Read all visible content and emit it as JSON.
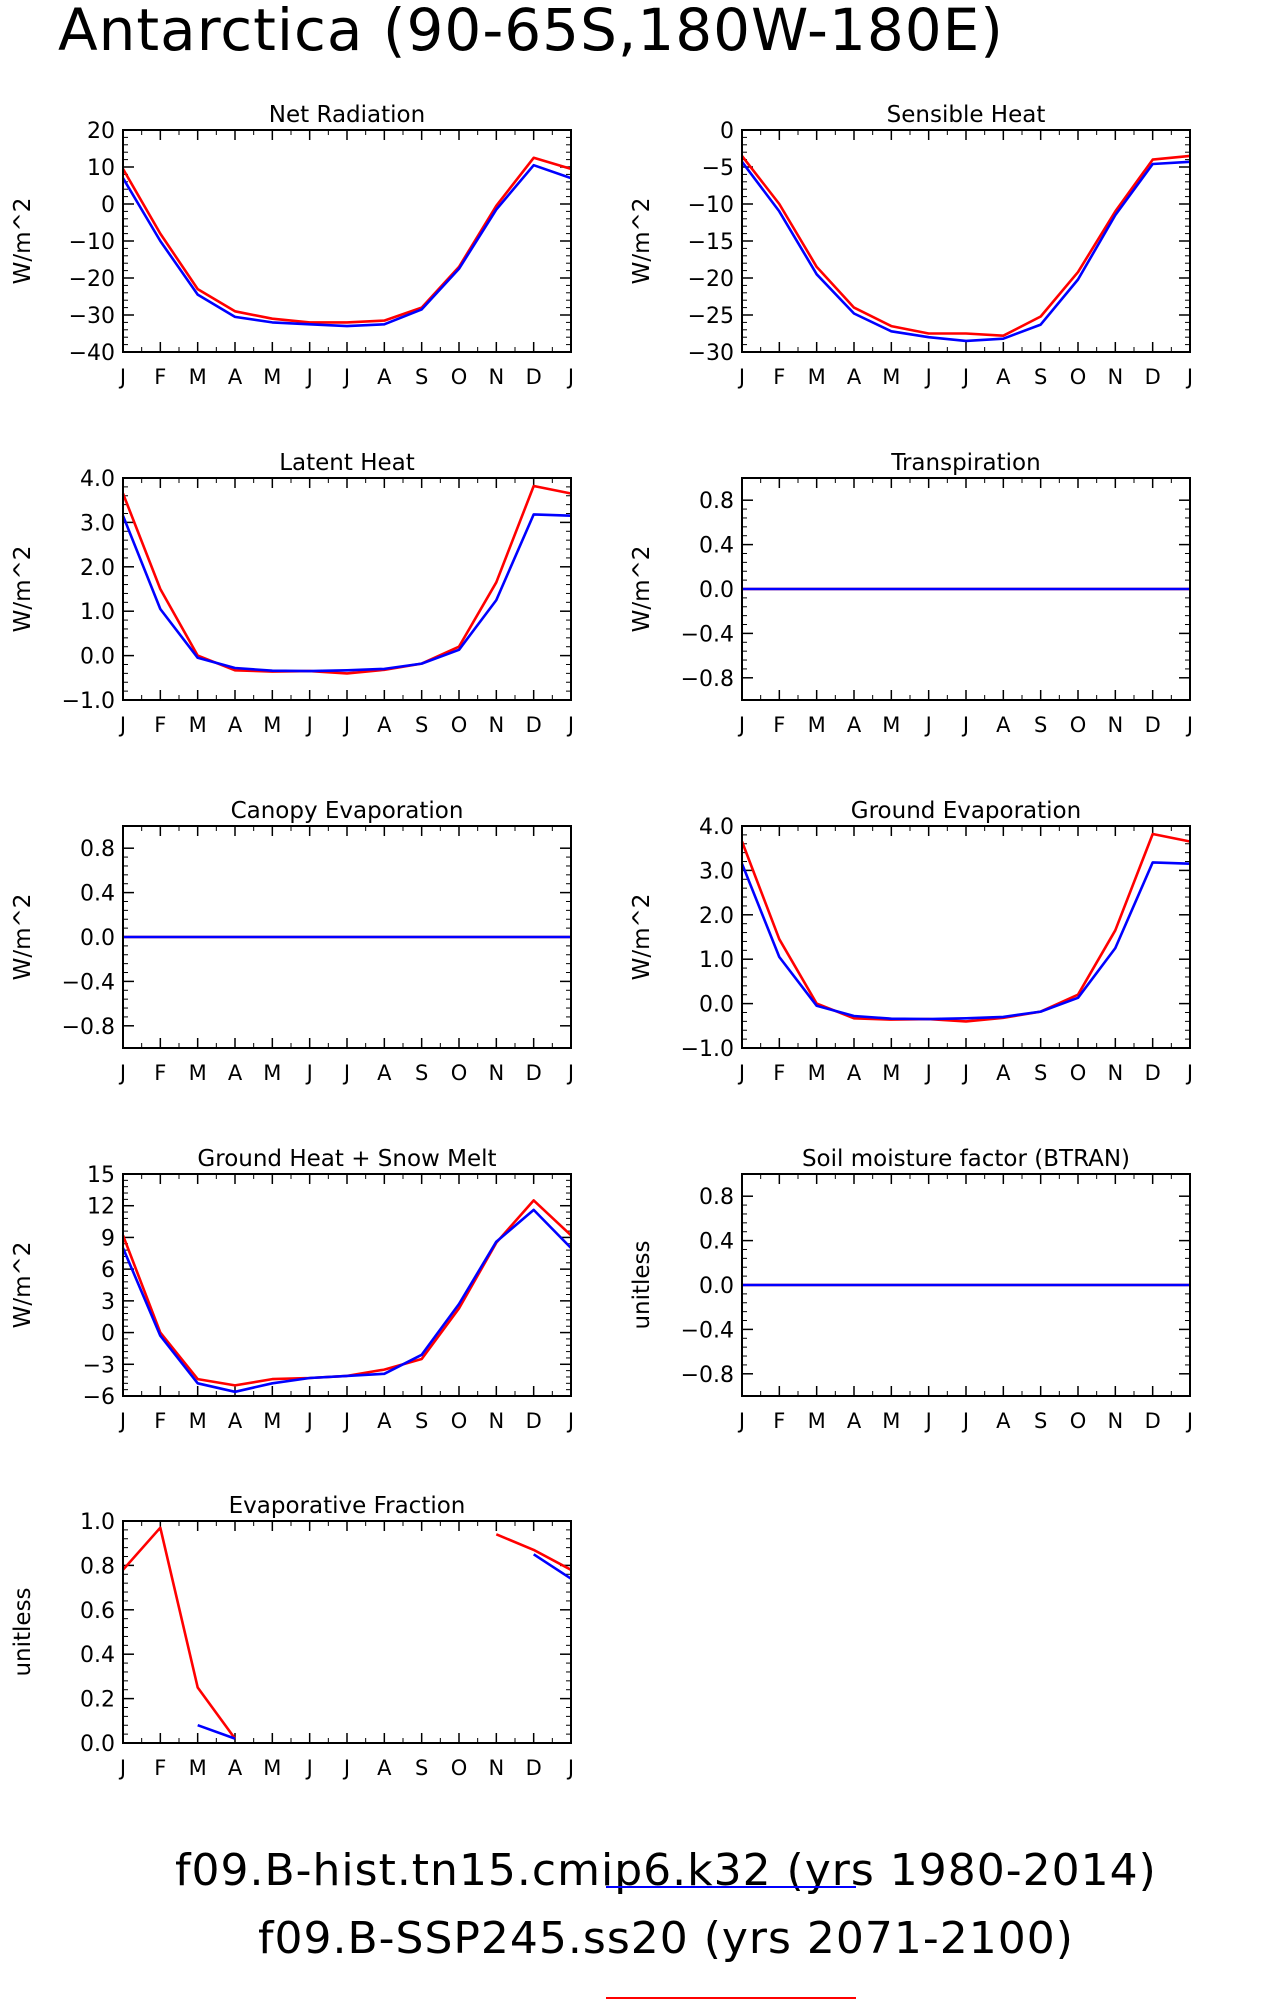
{
  "title": "Antarctica (90-65S,180W-180E)",
  "colors": {
    "series1": "#0000ff",
    "series2": "#ff0000",
    "axis": "#000000"
  },
  "legend": [
    {
      "label": "f09.B-hist.tn15.cmip6.k32 (yrs 1980-2014)",
      "color": "#0000ff"
    },
    {
      "label": "f09.B-SSP245.ss20 (yrs 2071-2100)",
      "color": "#ff0000"
    }
  ],
  "chart_data": [
    {
      "type": "line",
      "title": "Net Radiation",
      "ylabel": "W/m^2",
      "categories": [
        "J",
        "F",
        "M",
        "A",
        "M",
        "J",
        "J",
        "A",
        "S",
        "O",
        "N",
        "D",
        "J"
      ],
      "ylim": [
        -40,
        20
      ],
      "yticks": [
        20,
        10,
        0,
        -10,
        -20,
        -30,
        -40
      ],
      "series": [
        {
          "color": "#ff0000",
          "values": [
            9.5,
            -8,
            -23,
            -29,
            -31,
            -32,
            -32,
            -31.5,
            -28,
            -17,
            -0.5,
            12.5,
            9.5
          ]
        },
        {
          "color": "#0000ff",
          "values": [
            7,
            -10,
            -24.5,
            -30.5,
            -32,
            -32.5,
            -33,
            -32.5,
            -28.5,
            -17.5,
            -1.5,
            10.5,
            7
          ]
        }
      ]
    },
    {
      "type": "line",
      "title": "Sensible Heat",
      "ylabel": "W/m^2",
      "categories": [
        "J",
        "F",
        "M",
        "A",
        "M",
        "J",
        "J",
        "A",
        "S",
        "O",
        "N",
        "D",
        "J"
      ],
      "ylim": [
        -30,
        0
      ],
      "yticks": [
        0,
        -5,
        -10,
        -15,
        -20,
        -25,
        -30
      ],
      "series": [
        {
          "color": "#ff0000",
          "values": [
            -3.5,
            -10,
            -18.5,
            -24,
            -26.5,
            -27.5,
            -27.5,
            -27.8,
            -25.2,
            -19.2,
            -11,
            -4,
            -3.5
          ]
        },
        {
          "color": "#0000ff",
          "values": [
            -4.3,
            -11,
            -19.5,
            -24.8,
            -27.2,
            -28,
            -28.5,
            -28.2,
            -26.3,
            -20.2,
            -11.5,
            -4.6,
            -4.3
          ]
        }
      ]
    },
    {
      "type": "line",
      "title": "Latent Heat",
      "ylabel": "W/m^2",
      "categories": [
        "J",
        "F",
        "M",
        "A",
        "M",
        "J",
        "J",
        "A",
        "S",
        "O",
        "N",
        "D",
        "J"
      ],
      "ylim": [
        -1,
        4
      ],
      "yticks": [
        4.0,
        3.0,
        2.0,
        1.0,
        0.0,
        -1.0
      ],
      "ytick_labels": [
        "4.0",
        "3.0",
        "2.0",
        "1.0",
        "0.0",
        "-1.0"
      ],
      "series": [
        {
          "color": "#ff0000",
          "values": [
            3.65,
            1.5,
            0,
            -0.33,
            -0.36,
            -0.35,
            -0.4,
            -0.32,
            -0.18,
            0.2,
            1.65,
            3.82,
            3.65
          ]
        },
        {
          "color": "#0000ff",
          "values": [
            3.15,
            1.05,
            -0.05,
            -0.28,
            -0.34,
            -0.35,
            -0.33,
            -0.3,
            -0.18,
            0.13,
            1.25,
            3.18,
            3.15
          ]
        }
      ]
    },
    {
      "type": "line",
      "title": "Transpiration",
      "ylabel": "W/m^2",
      "categories": [
        "J",
        "F",
        "M",
        "A",
        "M",
        "J",
        "J",
        "A",
        "S",
        "O",
        "N",
        "D",
        "J"
      ],
      "ylim": [
        -1,
        1
      ],
      "yticks": [
        0.8,
        0.4,
        0.0,
        -0.4,
        -0.8
      ],
      "ytick_labels": [
        "0.8",
        "0.4",
        "0.0",
        "-0.4",
        "-0.8"
      ],
      "series": [
        {
          "color": "#ff0000",
          "values": [
            0,
            0,
            0,
            0,
            0,
            0,
            0,
            0,
            0,
            0,
            0,
            0,
            0
          ]
        },
        {
          "color": "#0000ff",
          "values": [
            0,
            0,
            0,
            0,
            0,
            0,
            0,
            0,
            0,
            0,
            0,
            0,
            0
          ]
        }
      ]
    },
    {
      "type": "line",
      "title": "Canopy Evaporation",
      "ylabel": "W/m^2",
      "categories": [
        "J",
        "F",
        "M",
        "A",
        "M",
        "J",
        "J",
        "A",
        "S",
        "O",
        "N",
        "D",
        "J"
      ],
      "ylim": [
        -1,
        1
      ],
      "yticks": [
        0.8,
        0.4,
        0.0,
        -0.4,
        -0.8
      ],
      "ytick_labels": [
        "0.8",
        "0.4",
        "0.0",
        "-0.4",
        "-0.8"
      ],
      "series": [
        {
          "color": "#ff0000",
          "values": [
            0,
            0,
            0,
            0,
            0,
            0,
            0,
            0,
            0,
            0,
            0,
            0,
            0
          ]
        },
        {
          "color": "#0000ff",
          "values": [
            0,
            0,
            0,
            0,
            0,
            0,
            0,
            0,
            0,
            0,
            0,
            0,
            0
          ]
        }
      ]
    },
    {
      "type": "line",
      "title": "Ground Evaporation",
      "ylabel": "W/m^2",
      "categories": [
        "J",
        "F",
        "M",
        "A",
        "M",
        "J",
        "J",
        "A",
        "S",
        "O",
        "N",
        "D",
        "J"
      ],
      "ylim": [
        -1,
        4
      ],
      "yticks": [
        4.0,
        3.0,
        2.0,
        1.0,
        0.0,
        -1.0
      ],
      "ytick_labels": [
        "4.0",
        "3.0",
        "2.0",
        "1.0",
        "0.0",
        "-1.0"
      ],
      "series": [
        {
          "color": "#ff0000",
          "values": [
            3.65,
            1.45,
            0,
            -0.33,
            -0.36,
            -0.35,
            -0.4,
            -0.32,
            -0.18,
            0.2,
            1.65,
            3.82,
            3.65
          ]
        },
        {
          "color": "#0000ff",
          "values": [
            3.15,
            1.05,
            -0.05,
            -0.28,
            -0.34,
            -0.35,
            -0.33,
            -0.3,
            -0.18,
            0.13,
            1.25,
            3.18,
            3.15
          ]
        }
      ]
    },
    {
      "type": "line",
      "title": "Ground Heat + Snow Melt",
      "ylabel": "W/m^2",
      "categories": [
        "J",
        "F",
        "M",
        "A",
        "M",
        "J",
        "J",
        "A",
        "S",
        "O",
        "N",
        "D",
        "J"
      ],
      "ylim": [
        -6,
        15
      ],
      "yticks": [
        15,
        12,
        9,
        6,
        3,
        0,
        -3,
        -6
      ],
      "series": [
        {
          "color": "#ff0000",
          "values": [
            9.2,
            0,
            -4.4,
            -5,
            -4.4,
            -4.3,
            -4.1,
            -3.5,
            -2.5,
            2.3,
            8.5,
            12.5,
            9.2
          ]
        },
        {
          "color": "#0000ff",
          "values": [
            8,
            -0.3,
            -4.8,
            -5.6,
            -4.8,
            -4.3,
            -4.1,
            -3.9,
            -2.1,
            2.7,
            8.6,
            11.6,
            8
          ]
        }
      ]
    },
    {
      "type": "line",
      "title": "Soil moisture factor (BTRAN)",
      "ylabel": "unitless",
      "categories": [
        "J",
        "F",
        "M",
        "A",
        "M",
        "J",
        "J",
        "A",
        "S",
        "O",
        "N",
        "D",
        "J"
      ],
      "ylim": [
        -1,
        1
      ],
      "yticks": [
        0.8,
        0.4,
        0.0,
        -0.4,
        -0.8
      ],
      "ytick_labels": [
        "0.8",
        "0.4",
        "0.0",
        "-0.4",
        "-0.8"
      ],
      "series": [
        {
          "color": "#ff0000",
          "values": [
            0,
            0,
            0,
            0,
            0,
            0,
            0,
            0,
            0,
            0,
            0,
            0,
            0
          ]
        },
        {
          "color": "#0000ff",
          "values": [
            0,
            0,
            0,
            0,
            0,
            0,
            0,
            0,
            0,
            0,
            0,
            0,
            0
          ]
        }
      ]
    },
    {
      "type": "line",
      "title": "Evaporative Fraction",
      "ylabel": "unitless",
      "categories": [
        "J",
        "F",
        "M",
        "A",
        "M",
        "J",
        "J",
        "A",
        "S",
        "O",
        "N",
        "D",
        "J"
      ],
      "ylim": [
        0,
        1
      ],
      "yticks": [
        1.0,
        0.8,
        0.6,
        0.4,
        0.2,
        0.0
      ],
      "ytick_labels": [
        "1.0",
        "0.8",
        "0.6",
        "0.4",
        "0.2",
        "0.0"
      ],
      "series": [
        {
          "color": "#ff0000",
          "values": [
            0.78,
            0.97,
            0.25,
            0.02,
            null,
            null,
            null,
            null,
            null,
            null,
            0.94,
            0.87,
            0.78
          ]
        },
        {
          "color": "#0000ff",
          "values": [
            null,
            null,
            0.08,
            0.02,
            null,
            null,
            null,
            null,
            null,
            null,
            null,
            0.85,
            0.74
          ]
        }
      ]
    }
  ]
}
